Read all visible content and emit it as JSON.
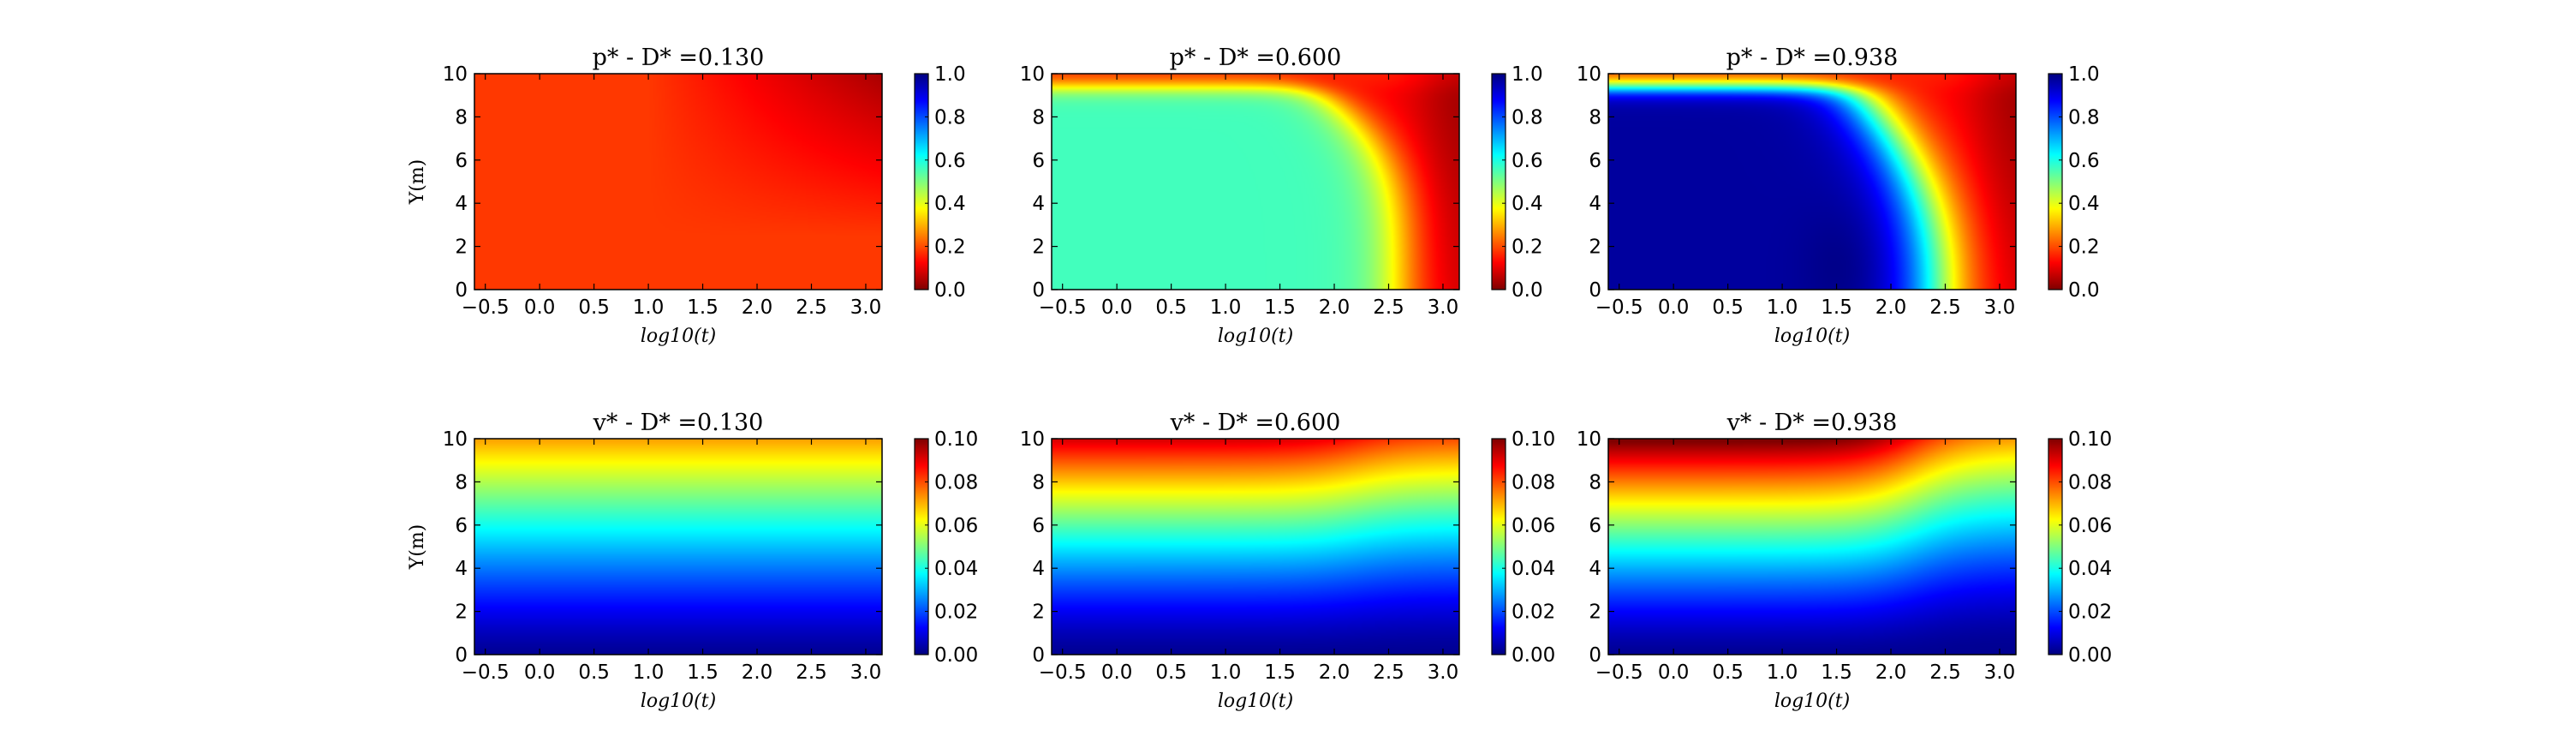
{
  "chart_data": [
    {
      "type": "heatmap",
      "title": "p* - D* =0.130",
      "xlabel": "log10(t)",
      "ylabel": "Y(m)",
      "xlim": [
        -0.6,
        3.15
      ],
      "ylim": [
        0,
        10
      ],
      "xticks": [
        "−0.5",
        "0.0",
        "0.5",
        "1.0",
        "1.5",
        "2.0",
        "2.5",
        "3.0"
      ],
      "yticks": [
        "0",
        "2",
        "4",
        "6",
        "8",
        "10"
      ],
      "colorbar": {
        "ticks": [
          "0.0",
          "0.2",
          "0.4",
          "0.6",
          "0.8",
          "1.0"
        ],
        "range": [
          0,
          1
        ],
        "colormap": "jet_r"
      },
      "grid": false,
      "variable": "p",
      "D": 0.13
    },
    {
      "type": "heatmap",
      "title": "p* - D* =0.600",
      "xlabel": "log10(t)",
      "ylabel": "",
      "xlim": [
        -0.6,
        3.15
      ],
      "ylim": [
        0,
        10
      ],
      "xticks": [
        "−0.5",
        "0.0",
        "0.5",
        "1.0",
        "1.5",
        "2.0",
        "2.5",
        "3.0"
      ],
      "yticks": [
        "0",
        "2",
        "4",
        "6",
        "8",
        "10"
      ],
      "colorbar": {
        "ticks": [
          "0.0",
          "0.2",
          "0.4",
          "0.6",
          "0.8",
          "1.0"
        ],
        "range": [
          0,
          1
        ],
        "colormap": "jet_r"
      },
      "grid": false,
      "variable": "p",
      "D": 0.6
    },
    {
      "type": "heatmap",
      "title": "p* - D* =0.938",
      "xlabel": "log10(t)",
      "ylabel": "",
      "xlim": [
        -0.6,
        3.15
      ],
      "ylim": [
        0,
        10
      ],
      "xticks": [
        "−0.5",
        "0.0",
        "0.5",
        "1.0",
        "1.5",
        "2.0",
        "2.5",
        "3.0"
      ],
      "yticks": [
        "0",
        "2",
        "4",
        "6",
        "8",
        "10"
      ],
      "colorbar": {
        "ticks": [
          "0.0",
          "0.2",
          "0.4",
          "0.6",
          "0.8",
          "1.0"
        ],
        "range": [
          0,
          1
        ],
        "colormap": "jet_r"
      },
      "grid": false,
      "variable": "p",
      "D": 0.938
    },
    {
      "type": "heatmap",
      "title": "v* - D* =0.130",
      "xlabel": "log10(t)",
      "ylabel": "Y(m)",
      "xlim": [
        -0.6,
        3.15
      ],
      "ylim": [
        0,
        10
      ],
      "xticks": [
        "−0.5",
        "0.0",
        "0.5",
        "1.0",
        "1.5",
        "2.0",
        "2.5",
        "3.0"
      ],
      "yticks": [
        "0",
        "2",
        "4",
        "6",
        "8",
        "10"
      ],
      "colorbar": {
        "ticks": [
          "0.00",
          "0.02",
          "0.04",
          "0.06",
          "0.08",
          "0.10"
        ],
        "range": [
          0,
          0.1
        ],
        "colormap": "jet"
      },
      "grid": false,
      "variable": "v",
      "D": 0.13
    },
    {
      "type": "heatmap",
      "title": "v* - D* =0.600",
      "xlabel": "log10(t)",
      "ylabel": "",
      "xlim": [
        -0.6,
        3.15
      ],
      "ylim": [
        0,
        10
      ],
      "xticks": [
        "−0.5",
        "0.0",
        "0.5",
        "1.0",
        "1.5",
        "2.0",
        "2.5",
        "3.0"
      ],
      "yticks": [
        "0",
        "2",
        "4",
        "6",
        "8",
        "10"
      ],
      "colorbar": {
        "ticks": [
          "0.00",
          "0.02",
          "0.04",
          "0.06",
          "0.08",
          "0.10"
        ],
        "range": [
          0,
          0.1
        ],
        "colormap": "jet"
      },
      "grid": false,
      "variable": "v",
      "D": 0.6
    },
    {
      "type": "heatmap",
      "title": "v* - D* =0.938",
      "xlabel": "log10(t)",
      "ylabel": "",
      "xlim": [
        -0.6,
        3.15
      ],
      "ylim": [
        0,
        10
      ],
      "xticks": [
        "−0.5",
        "0.0",
        "0.5",
        "1.0",
        "1.5",
        "2.0",
        "2.5",
        "3.0"
      ],
      "yticks": [
        "0",
        "2",
        "4",
        "6",
        "8",
        "10"
      ],
      "colorbar": {
        "ticks": [
          "0.00",
          "0.02",
          "0.04",
          "0.06",
          "0.08",
          "0.10"
        ],
        "range": [
          0,
          0.1
        ],
        "colormap": "jet"
      },
      "grid": false,
      "variable": "v",
      "D": 0.938
    }
  ]
}
